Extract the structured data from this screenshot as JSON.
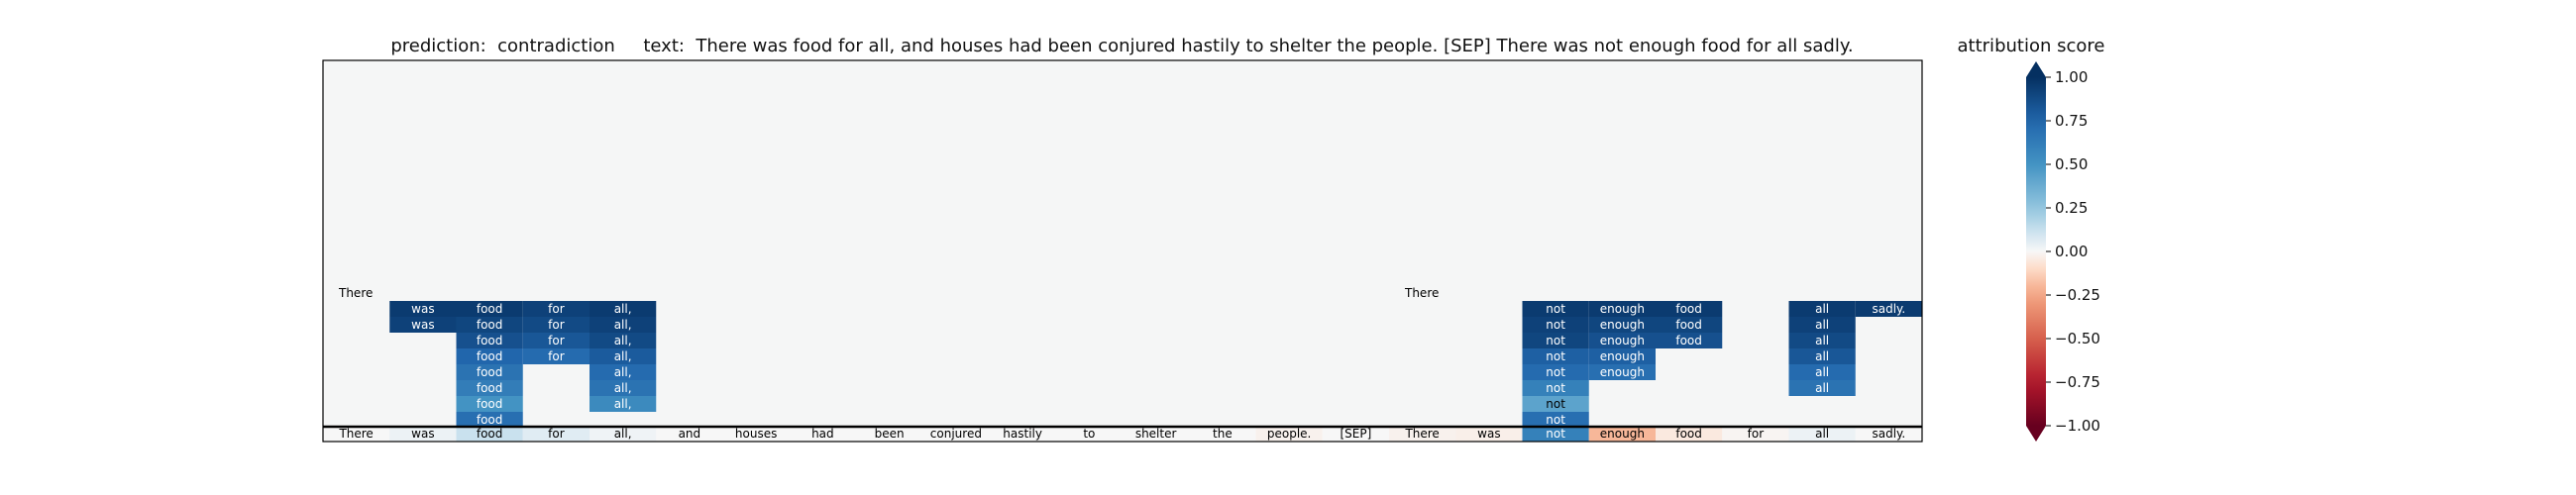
{
  "chart_data": {
    "type": "heatmap",
    "title": "prediction:  contradiction     text:  There was food for all, and houses had been conjured hastily to shelter the people. [SEP] There was not enough food for all sadly.",
    "colorbar_label": "attribution score",
    "colorbar_ticks": [
      "1.00",
      "0.75",
      "0.50",
      "0.25",
      "0.00",
      "−0.25",
      "−0.50",
      "−0.75",
      "−1.00"
    ],
    "colorbar_range": [
      -1.0,
      1.0
    ],
    "tokens": [
      "There",
      "was",
      "food",
      "for",
      "all,",
      "and",
      "houses",
      "had",
      "been",
      "conjured",
      "hastily",
      "to",
      "shelter",
      "the",
      "people.",
      "[SEP]",
      "There",
      "was",
      "not",
      "enough",
      "food",
      "for",
      "all",
      "sadly."
    ],
    "token_scores": [
      0.0,
      0.03,
      0.12,
      0.06,
      0.02,
      0.0,
      0.0,
      0.0,
      0.0,
      0.0,
      0.0,
      0.0,
      0.0,
      0.0,
      -0.02,
      0.0,
      -0.02,
      -0.03,
      0.6,
      -0.2,
      -0.05,
      -0.01,
      0.03,
      0.0
    ],
    "layers": [
      {
        "cells": [
          [
            0,
            "There",
            0.0
          ],
          [
            16,
            "There",
            0.0
          ]
        ]
      },
      {
        "cells": [
          [
            1,
            "was",
            0.95
          ],
          [
            2,
            "food",
            0.95
          ],
          [
            3,
            "for",
            0.92
          ],
          [
            4,
            "all,",
            0.95
          ],
          [
            18,
            "not",
            0.95
          ],
          [
            19,
            "enough",
            0.95
          ],
          [
            20,
            "food",
            0.95
          ],
          [
            22,
            "all",
            0.95
          ],
          [
            23,
            "sadly.",
            0.95
          ]
        ]
      },
      {
        "cells": [
          [
            1,
            "was",
            0.92
          ],
          [
            2,
            "food",
            0.9
          ],
          [
            3,
            "for",
            0.88
          ],
          [
            4,
            "all,",
            0.92
          ],
          [
            18,
            "not",
            0.92
          ],
          [
            19,
            "enough",
            0.9
          ],
          [
            20,
            "food",
            0.9
          ],
          [
            22,
            "all",
            0.92
          ]
        ]
      },
      {
        "cells": [
          [
            2,
            "food",
            0.85
          ],
          [
            3,
            "for",
            0.82
          ],
          [
            4,
            "all,",
            0.88
          ],
          [
            18,
            "not",
            0.9
          ],
          [
            19,
            "enough",
            0.85
          ],
          [
            20,
            "food",
            0.85
          ],
          [
            22,
            "all",
            0.88
          ]
        ]
      },
      {
        "cells": [
          [
            2,
            "food",
            0.75
          ],
          [
            3,
            "for",
            0.72
          ],
          [
            4,
            "all,",
            0.8
          ],
          [
            18,
            "not",
            0.78
          ],
          [
            19,
            "enough",
            0.78
          ],
          [
            22,
            "all",
            0.82
          ]
        ]
      },
      {
        "cells": [
          [
            2,
            "food",
            0.68
          ],
          [
            4,
            "all,",
            0.72
          ],
          [
            18,
            "not",
            0.72
          ],
          [
            19,
            "enough",
            0.7
          ],
          [
            22,
            "all",
            0.72
          ]
        ]
      },
      {
        "cells": [
          [
            2,
            "food",
            0.62
          ],
          [
            4,
            "all,",
            0.68
          ],
          [
            18,
            "not",
            0.6
          ],
          [
            22,
            "all",
            0.68
          ]
        ]
      },
      {
        "cells": [
          [
            2,
            "food",
            0.5
          ],
          [
            4,
            "all,",
            0.55
          ],
          [
            18,
            "not",
            0.42
          ]
        ]
      },
      {
        "cells": [
          [
            2,
            "food",
            0.7
          ],
          [
            18,
            "not",
            0.7
          ]
        ]
      }
    ]
  }
}
